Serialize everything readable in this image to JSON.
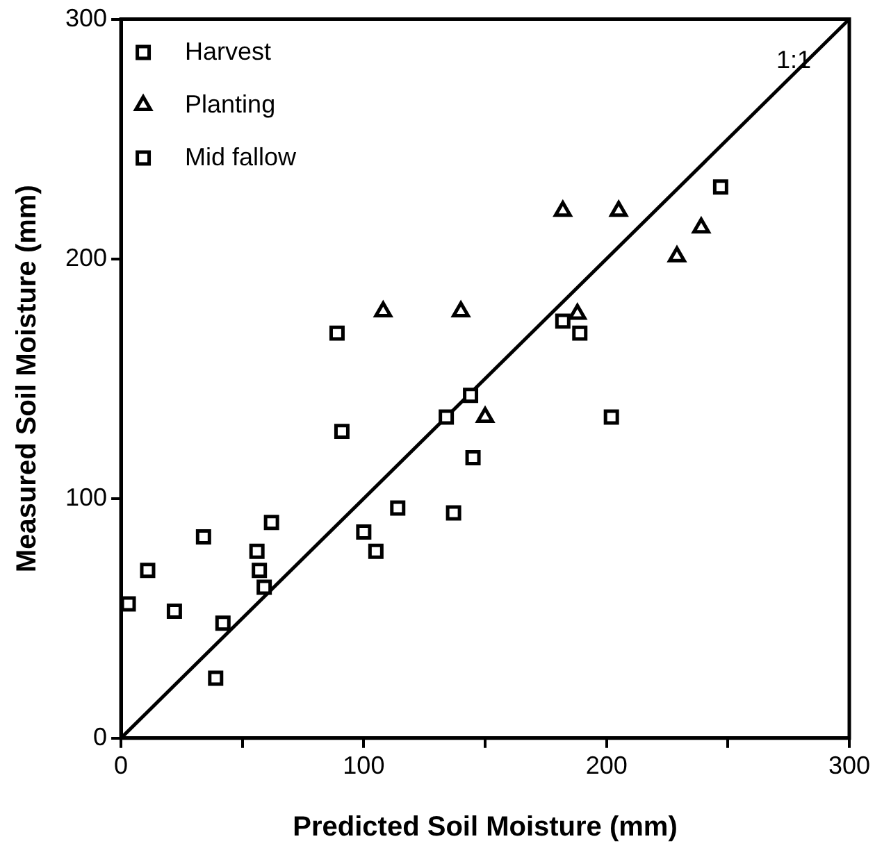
{
  "chart_data": {
    "type": "scatter",
    "xlabel": "Predicted Soil Moisture (mm)",
    "ylabel": "Measured Soil Moisture (mm)",
    "xlim": [
      0,
      300
    ],
    "ylim": [
      0,
      300
    ],
    "xticks": [
      0,
      {
        "value": 50,
        "label": null
      },
      100,
      {
        "value": 150,
        "label": null
      },
      200,
      {
        "value": 250,
        "label": null
      },
      300
    ],
    "yticks": [
      0,
      100,
      200,
      300
    ],
    "grid": false,
    "legend": "top left",
    "annotations": [
      "1:1"
    ],
    "series": [
      {
        "name": "Harvest",
        "marker": "square",
        "color": "#000000",
        "x": [
          3,
          11,
          34,
          42,
          39,
          91,
          89,
          134
        ],
        "values": [
          56,
          70,
          84,
          48,
          25,
          128,
          169,
          134
        ]
      },
      {
        "name": "Planting",
        "marker": "triangle",
        "color": "#000000",
        "x": [
          108,
          140,
          182,
          205,
          239,
          229,
          188,
          150
        ],
        "values": [
          178,
          178,
          220,
          220,
          213,
          201,
          177,
          134
        ]
      },
      {
        "name": "Mid fallow",
        "marker": "square",
        "color": "#000000",
        "x": [
          247,
          182,
          189,
          144,
          145,
          202,
          114,
          137,
          100,
          105,
          62,
          56,
          57,
          59,
          22
        ],
        "values": [
          230,
          174,
          169,
          143,
          117,
          134,
          96,
          94,
          86,
          78,
          90,
          78,
          70,
          63,
          53
        ]
      },
      {
        "type": "line",
        "marker": "none",
        "line_style": "solid",
        "color": "#000000",
        "x": [
          0,
          300
        ],
        "values": [
          0,
          300
        ]
      }
    ]
  }
}
